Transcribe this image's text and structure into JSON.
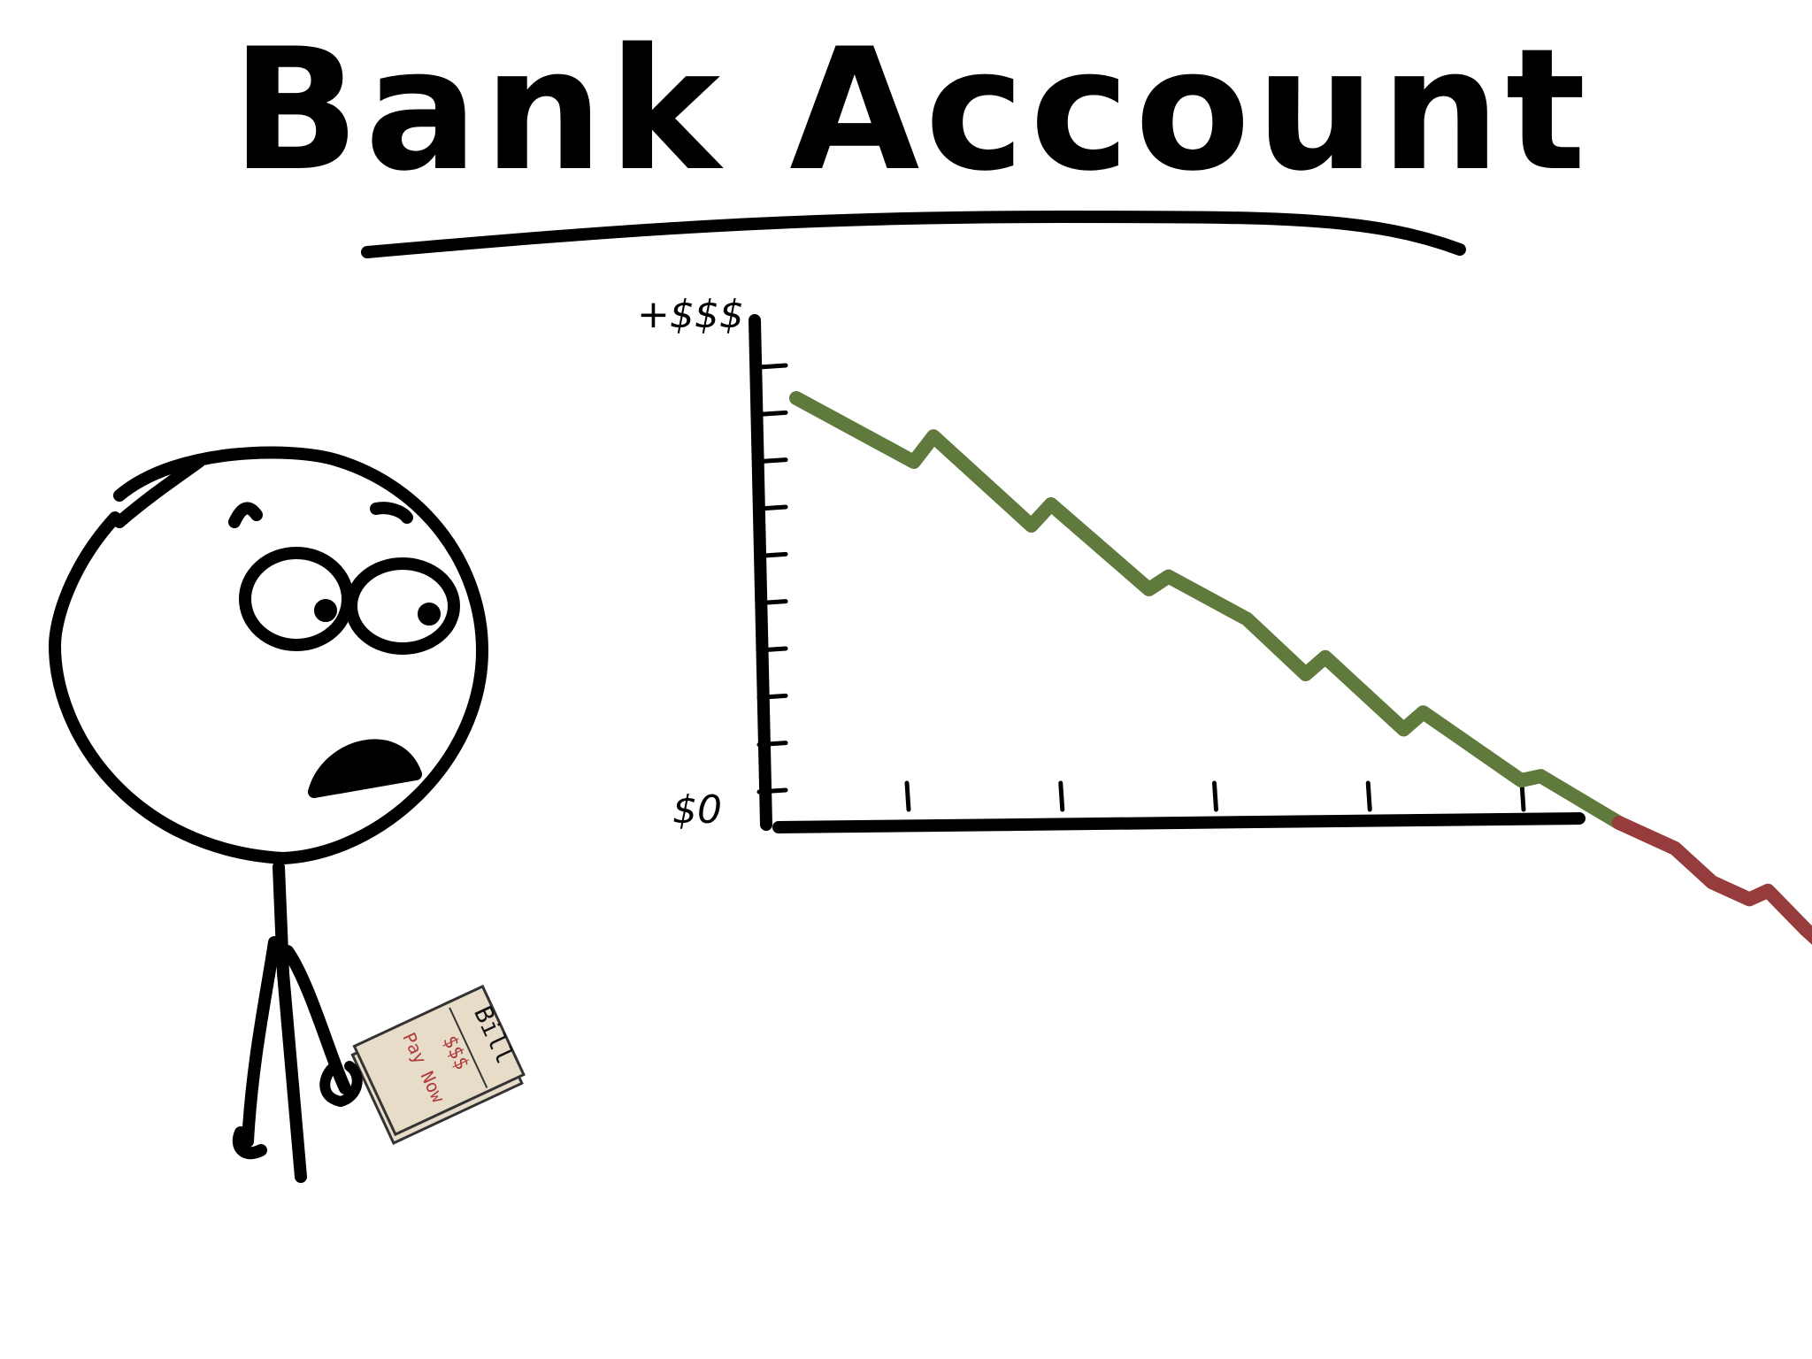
{
  "title": "Bank Account",
  "chart_data": {
    "type": "line",
    "title": "Bank Account",
    "y_tick_labels": {
      "top": "+$$$",
      "bottom": "$0"
    },
    "y_ticks": 10,
    "x_ticks": 5,
    "series": [
      {
        "values": [
          [
            0,
            100
          ],
          [
            6,
            85
          ],
          [
            7,
            91
          ],
          [
            12,
            70
          ],
          [
            13,
            75
          ],
          [
            18,
            55
          ],
          [
            19,
            58
          ],
          [
            23,
            48
          ],
          [
            26,
            35
          ],
          [
            27,
            39
          ],
          [
            31,
            22
          ],
          [
            32,
            26
          ],
          [
            37,
            10
          ],
          [
            38,
            11
          ],
          [
            42,
            0
          ]
        ],
        "colors": {
          "above_zero": "#5f7a3c",
          "below_zero": "#963c3c"
        }
      }
    ]
  },
  "bill": {
    "label": "Bill",
    "amount": "$$$",
    "status": "Pay Now",
    "paper_color": "#e6dcc8",
    "ink_color": "#b03a3a"
  },
  "colors": {
    "ink": "#000000",
    "positive": "#5f7a3c",
    "negative": "#963c3c"
  }
}
